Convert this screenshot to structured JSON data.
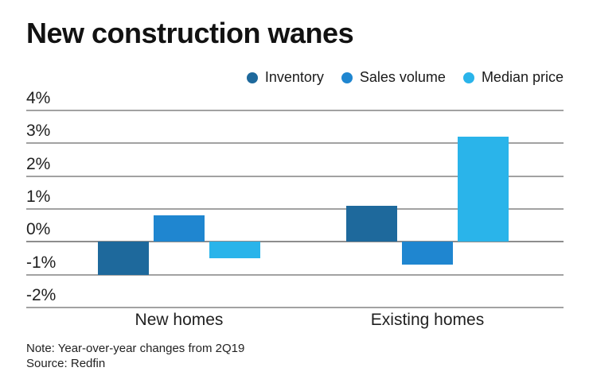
{
  "title": "New construction wanes",
  "note": "Note: Year-over-year changes from 2Q19",
  "source": "Source: Redfin",
  "colors": {
    "grid": "#a2a2a2",
    "zero_line": "#8d8d8d",
    "title_text": "#121212",
    "inventory": "#1e699c",
    "sales_volume": "#1f86d0",
    "median_price": "#2ab4ea"
  },
  "chart_data": {
    "type": "bar",
    "title": "New construction wanes",
    "categories": [
      "New homes",
      "Existing homes"
    ],
    "series": [
      {
        "name": "Inventory",
        "color": "#1e699c",
        "values": [
          -1.0,
          1.1
        ]
      },
      {
        "name": "Sales volume",
        "color": "#1f86d0",
        "values": [
          0.8,
          -0.7
        ]
      },
      {
        "name": "Median price",
        "color": "#2ab4ea",
        "values": [
          -0.5,
          3.2
        ]
      }
    ],
    "unit": "%",
    "ylim": [
      -2,
      4
    ],
    "ytick_step": 1,
    "ytick_labels": [
      "4%",
      "3%",
      "2%",
      "1%",
      "0%",
      "-1%",
      "-2%"
    ],
    "grid": true,
    "legend_position": "top-right",
    "note": "Note: Year-over-year changes from 2Q19",
    "source": "Source: Redfin"
  }
}
